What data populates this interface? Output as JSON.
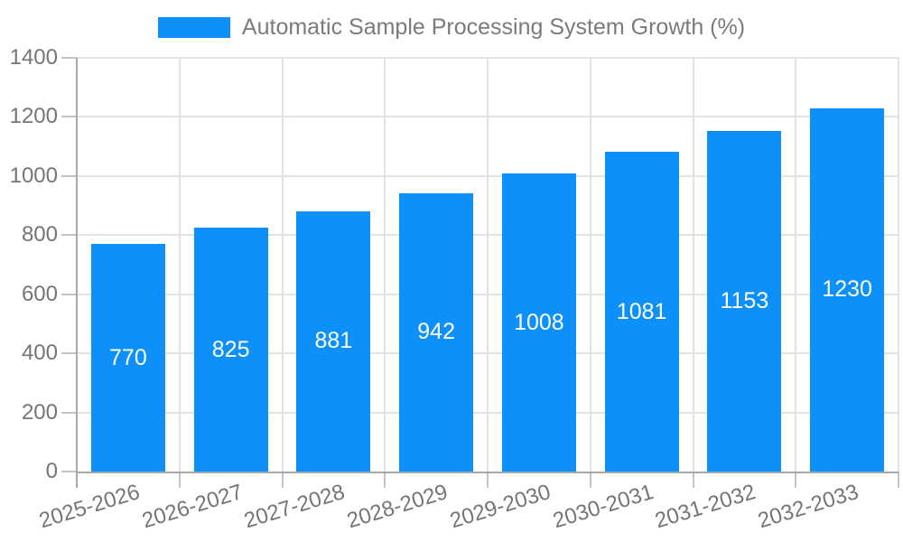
{
  "chart_data": {
    "type": "bar",
    "title": "Automatic Sample Processing System Growth (%)",
    "categories": [
      "2025-2026",
      "2026-2027",
      "2027-2028",
      "2028-2029",
      "2029-2030",
      "2030-2031",
      "2031-2032",
      "2032-2033"
    ],
    "series": [
      {
        "name": "Automatic Sample Processing System Growth (%)",
        "color": "#0D90FA",
        "values": [
          770,
          825,
          881,
          942,
          1008,
          1081,
          1153,
          1230
        ]
      }
    ],
    "value_labels": [
      "770",
      "825",
      "881",
      "942",
      "1008",
      "1081",
      "1153",
      "1230"
    ],
    "xlabel": "",
    "ylabel": "",
    "ylim": [
      0,
      1400
    ],
    "yticks": [
      0,
      200,
      400,
      600,
      800,
      1000,
      1200,
      1400
    ],
    "ytick_labels": [
      "0",
      "200",
      "400",
      "600",
      "800",
      "1000",
      "1200",
      "1400"
    ],
    "grid": "both",
    "legend_position": "top",
    "value_label_position": "center"
  },
  "colors": {
    "bar": "#0D90FA",
    "value_label": "#FFFFFF",
    "grid": "#E3E3E3",
    "tick": "#C4C4C4",
    "axis": "#A8A8A8",
    "text": "#757575",
    "legend_text": "#7B7B7B",
    "background": "#FFFFFF"
  }
}
